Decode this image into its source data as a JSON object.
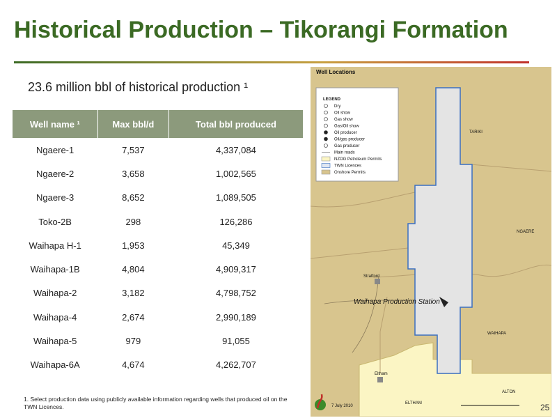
{
  "header": {
    "title": "Historical Production – Tikorangi Formation"
  },
  "subtitle": "23.6 million bbl of historical production ¹",
  "table": {
    "header": [
      "Well name ¹",
      "Max bbl/d",
      "Total bbl produced"
    ],
    "rows": [
      [
        "Ngaere-1",
        "7,537",
        "4,337,084"
      ],
      [
        "Ngaere-2",
        "3,658",
        "1,002,565"
      ],
      [
        "Ngaere-3",
        "8,652",
        "1,089,505"
      ],
      [
        "Toko-2B",
        "298",
        "126,286"
      ],
      [
        "Waihapa H-1",
        "1,953",
        "45,349"
      ],
      [
        "Waihapa-1B",
        "4,804",
        "4,909,317"
      ],
      [
        "Waihapa-2",
        "3,182",
        "4,798,752"
      ],
      [
        "Waihapa-4",
        "2,674",
        "2,990,189"
      ],
      [
        "Waihapa-5",
        "979",
        "91,055"
      ],
      [
        "Waihapa-6A",
        "4,674",
        "4,262,707"
      ]
    ]
  },
  "footnote": "1. Select production data using publicly available information regarding wells that produced oil on the TWN Licences.",
  "page_number": "25",
  "map": {
    "title": "Well Locations",
    "legend_title": "LEGEND",
    "legend": [
      "Dry",
      "Oil show",
      "Gas show",
      "Gas/Oil show",
      "Oil producer",
      "Oil/gas producer",
      "Gas producer",
      "Main roads",
      "NZOG Petroleum Permits",
      "TWN Licences",
      "Onshore Permits"
    ],
    "labels": [
      "TARIKI",
      "NGAERE",
      "WAIHAPA",
      "Waihapa Production Station",
      "Stratford",
      "Eltham",
      "ELTHAM",
      "ALTON"
    ],
    "date": "7 July 2010"
  }
}
